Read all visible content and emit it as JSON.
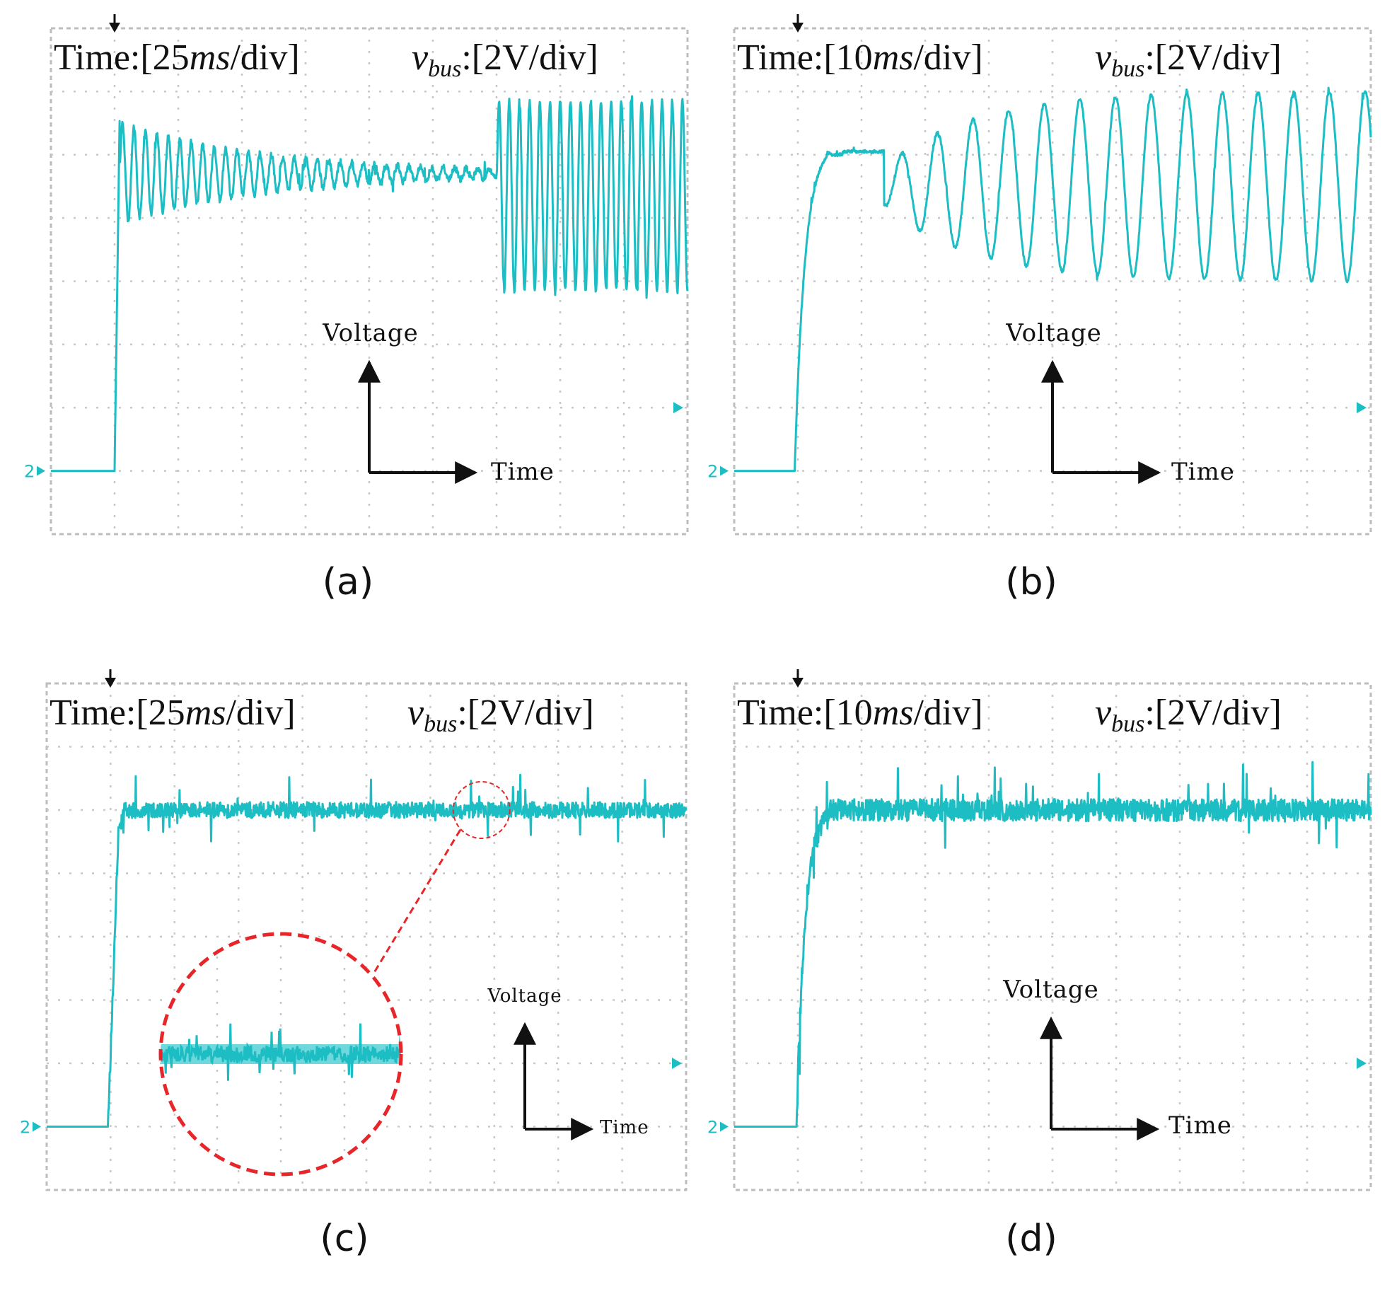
{
  "colors": {
    "trace": "#1dbdc4",
    "trace_band": "#6fd8dc",
    "grid": "#c8c8c8",
    "frame": "#bdbdbd",
    "zoom_circle": "#e8262a",
    "arrow": "#111111"
  },
  "chart_data": [
    {
      "id": "a",
      "type": "line",
      "caption": "(a)",
      "header": {
        "time_prefix": "Time:[25",
        "time_unit": "ms",
        "time_suffix": "/div]",
        "vbus_sym": "v",
        "vbus_sub": "bus",
        "vbus_scale": ":[2V/div]"
      },
      "axis_labels": {
        "voltage": "Voltage",
        "time": "Time"
      },
      "channel_marker": "2",
      "divisions": {
        "x": 10,
        "y": 8
      },
      "xlim": [
        0,
        250
      ],
      "ylim": [
        -2,
        14
      ],
      "units": {
        "x": "ms",
        "y": "V"
      },
      "segments": [
        {
          "from": 0,
          "to": 25,
          "kind": "flat",
          "level": 0
        },
        {
          "from": 25,
          "to": 27,
          "kind": "ramp",
          "start": 0,
          "end": 11.2
        },
        {
          "from": 27,
          "to": 175,
          "kind": "damped",
          "level": 9.4,
          "amp": 1.6,
          "decay": 60,
          "period": 4.5
        },
        {
          "from": 175,
          "to": 250,
          "kind": "osc",
          "level": 8.7,
          "amp": 3.0,
          "period": 4.0
        }
      ],
      "noise": 0.1
    },
    {
      "id": "b",
      "type": "line",
      "caption": "(b)",
      "header": {
        "time_prefix": "Time:[10",
        "time_unit": "ms",
        "time_suffix": "/div]",
        "vbus_sym": "v",
        "vbus_sub": "bus",
        "vbus_scale": ":[2V/div]"
      },
      "axis_labels": {
        "voltage": "Voltage",
        "time": "Time"
      },
      "channel_marker": "2",
      "divisions": {
        "x": 10,
        "y": 8
      },
      "xlim": [
        0,
        100
      ],
      "ylim": [
        -2,
        14
      ],
      "units": {
        "x": "ms",
        "y": "V"
      },
      "segments": [
        {
          "from": 0,
          "to": 9.5,
          "kind": "flat",
          "level": 0
        },
        {
          "from": 9.5,
          "to": 15,
          "kind": "rise",
          "start": 0,
          "end": 10.4,
          "tau": 1.6
        },
        {
          "from": 15,
          "to": 17,
          "kind": "flat",
          "level": 10.0
        },
        {
          "from": 17,
          "to": 23.5,
          "kind": "flat",
          "level": 10.1
        },
        {
          "from": 23.5,
          "to": 100,
          "kind": "growing",
          "level": 9.0,
          "amp0": 0.6,
          "amp1": 3.0,
          "grow": 14,
          "period": 5.6
        }
      ],
      "noise": 0.05
    },
    {
      "id": "c",
      "type": "line",
      "caption": "(c)",
      "header": {
        "time_prefix": "Time:[25",
        "time_unit": "ms",
        "time_suffix": "/div]",
        "vbus_sym": "v",
        "vbus_sub": "bus",
        "vbus_scale": ":[2V/div]"
      },
      "axis_labels": {
        "voltage": "Voltage",
        "time": "Time"
      },
      "channel_marker": "2",
      "divisions": {
        "x": 10,
        "y": 8
      },
      "xlim": [
        0,
        250
      ],
      "ylim": [
        -2,
        14
      ],
      "units": {
        "x": "ms",
        "y": "V"
      },
      "segments": [
        {
          "from": 0,
          "to": 24,
          "kind": "flat",
          "level": 0
        },
        {
          "from": 24,
          "to": 28,
          "kind": "ramp",
          "start": 0,
          "end": 9.2
        },
        {
          "from": 28,
          "to": 30,
          "kind": "ramp",
          "start": 9.2,
          "end": 10.0
        },
        {
          "from": 30,
          "to": 250,
          "kind": "flat",
          "level": 10.0
        }
      ],
      "noise": 0.25,
      "zoom": {
        "center_x_ms": 170,
        "level": 10.0
      }
    },
    {
      "id": "d",
      "type": "line",
      "caption": "(d)",
      "header": {
        "time_prefix": "Time:[10",
        "time_unit": "ms",
        "time_suffix": "/div]",
        "vbus_sym": "v",
        "vbus_sub": "bus",
        "vbus_scale": ":[2V/div]"
      },
      "axis_labels": {
        "voltage": "Voltage",
        "time": "Time"
      },
      "channel_marker": "2",
      "divisions": {
        "x": 10,
        "y": 8
      },
      "xlim": [
        0,
        100
      ],
      "ylim": [
        -2,
        14
      ],
      "units": {
        "x": "ms",
        "y": "V"
      },
      "segments": [
        {
          "from": 0,
          "to": 9.8,
          "kind": "flat",
          "level": 0
        },
        {
          "from": 9.8,
          "to": 15,
          "kind": "rise",
          "start": 0,
          "end": 10.0,
          "tau": 1.3
        },
        {
          "from": 15,
          "to": 100,
          "kind": "flat",
          "level": 10.0
        }
      ],
      "noise": 0.35
    }
  ]
}
